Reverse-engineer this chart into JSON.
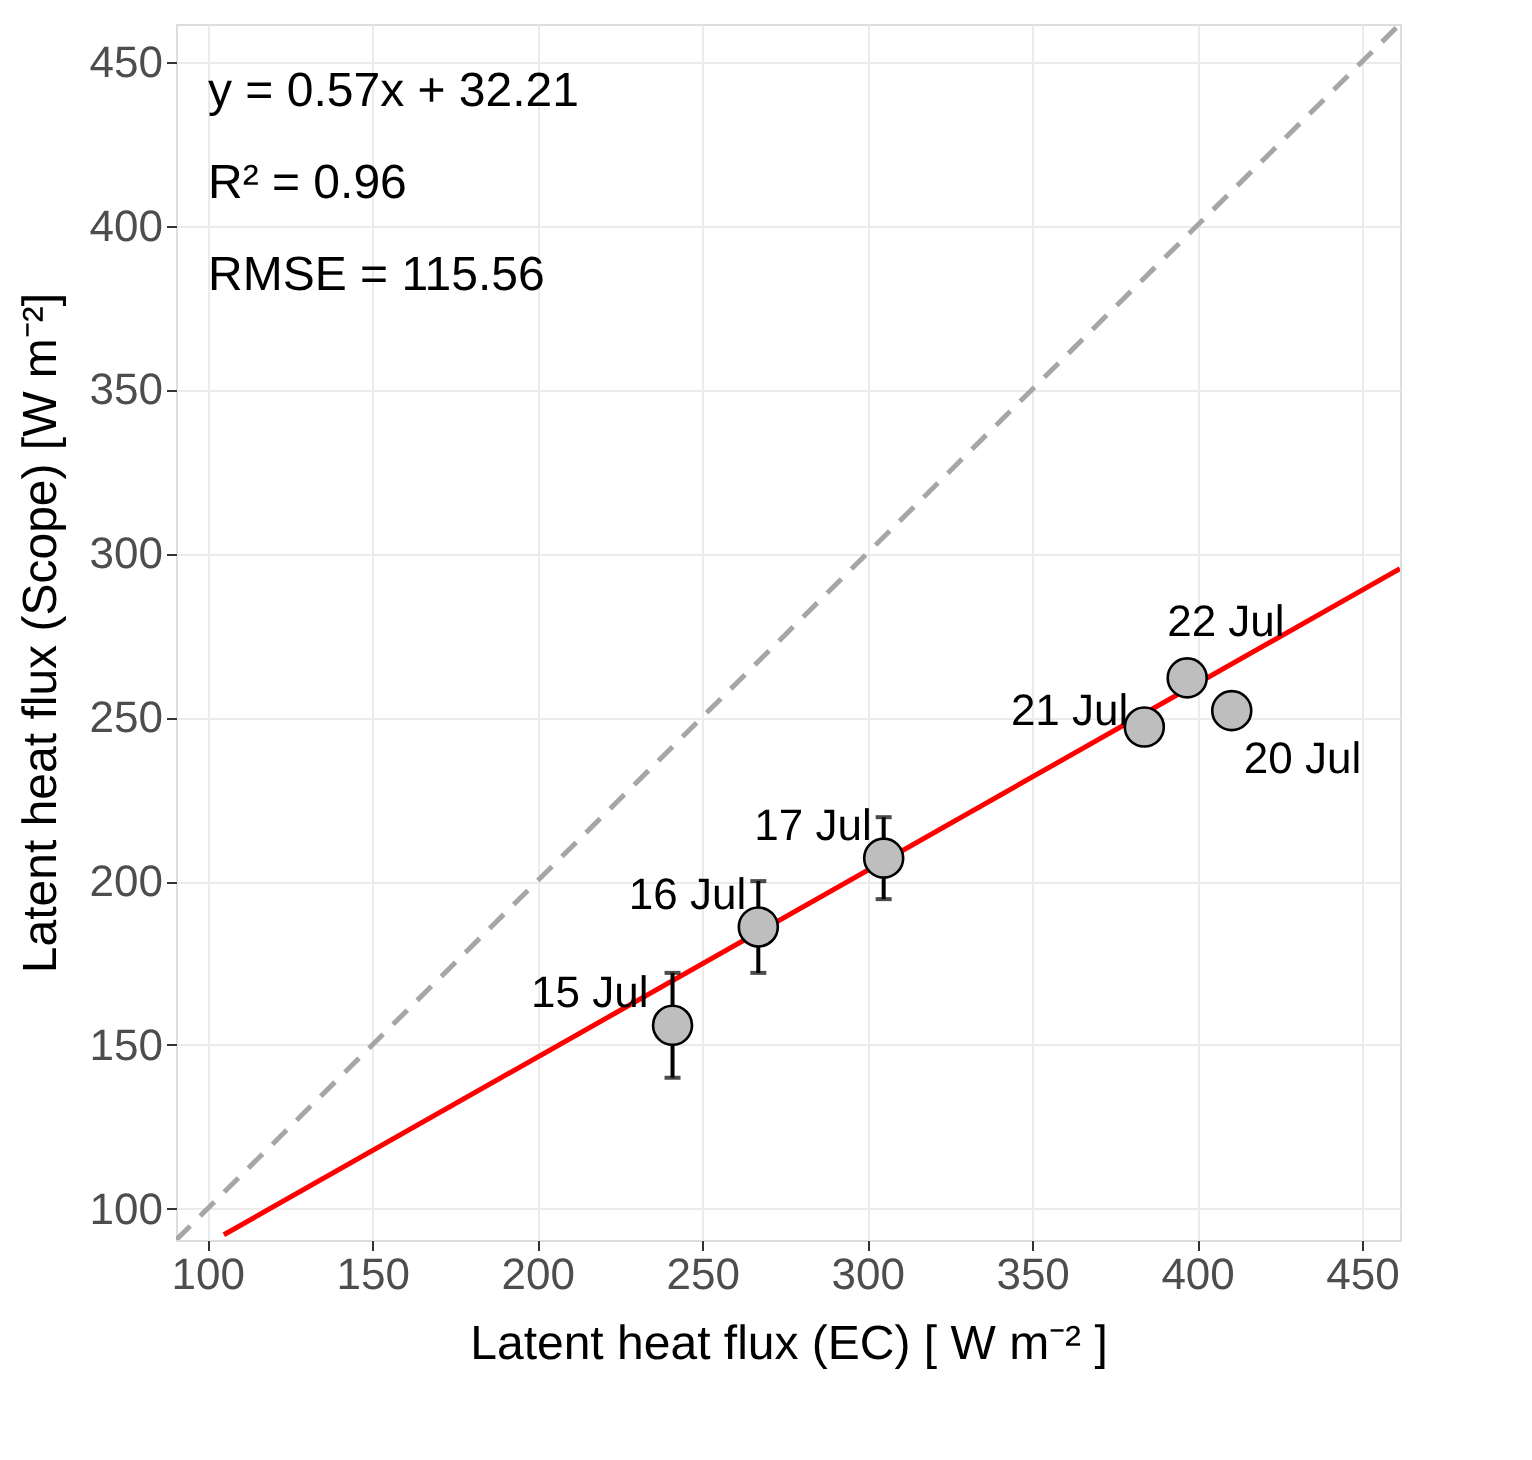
{
  "chart_data": {
    "type": "scatter",
    "xlabel": "Latent heat flux (EC) [ W m⁻² ]",
    "ylabel": "Latent heat flux (Scope) [W m⁻²]",
    "xlim": [
      90.5,
      461.5
    ],
    "ylim": [
      90.5,
      461.5
    ],
    "xticks": [
      100,
      150,
      200,
      250,
      300,
      350,
      400,
      450
    ],
    "yticks": [
      100,
      150,
      200,
      250,
      300,
      350,
      400,
      450
    ],
    "grid": true,
    "series": [
      {
        "type": "line",
        "color": "#a6a6a6",
        "line_style": "dashed",
        "x": [
          90.5,
          461.5
        ],
        "values": [
          90.5,
          461.5
        ]
      },
      {
        "type": "line",
        "color": "#ff0000",
        "line_style": "solid",
        "x": [
          105,
          461.5
        ],
        "values": [
          92.1,
          295.3
        ]
      },
      {
        "marker": "circle",
        "color": "#bebebe",
        "x": [
          241,
          267,
          305,
          410.5,
          384,
          397
        ],
        "values": [
          156,
          186,
          207,
          252,
          247,
          262
        ],
        "errors": [
          16,
          14,
          12.5,
          null,
          null,
          null
        ]
      }
    ],
    "annotations": [
      "y = 0.57x + 32.21",
      "R² = 0.96",
      "RMSE = 115.56",
      {
        "text": "15 Jul",
        "x": 241,
        "y": 156
      },
      {
        "text": "16 Jul",
        "x": 267,
        "y": 186
      },
      {
        "text": "17 Jul",
        "x": 305,
        "y": 207
      },
      {
        "text": "20 Jul",
        "x": 410.5,
        "y": 252
      },
      {
        "text": "21 Jul",
        "x": 384,
        "y": 247
      },
      {
        "text": "22 Jul",
        "x": 397,
        "y": 262
      }
    ]
  }
}
